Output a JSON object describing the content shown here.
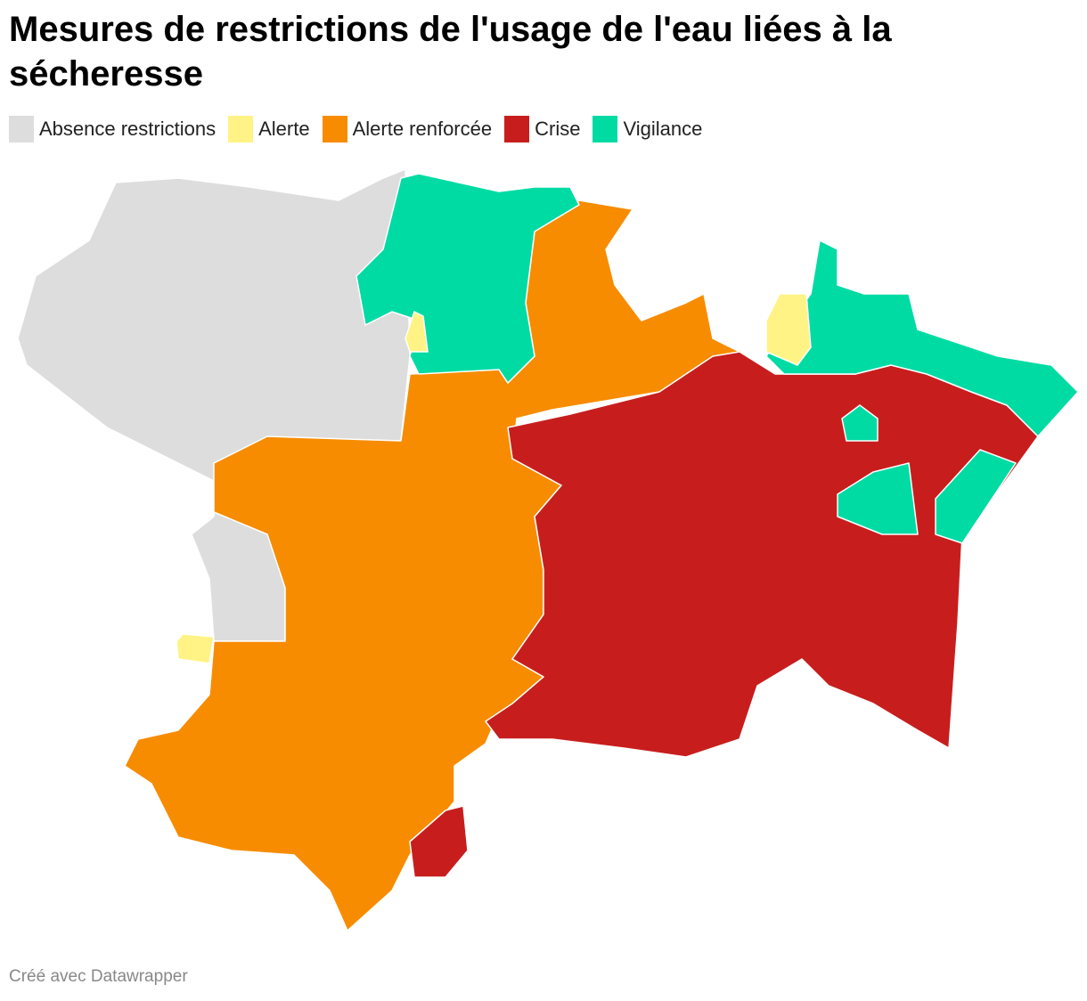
{
  "title": "Mesures de restrictions de l'usage de l'eau liées à la sécheresse",
  "legend": [
    {
      "name": "Absence restrictions",
      "color": "#dddddd"
    },
    {
      "name": "Alerte",
      "color": "#fff385"
    },
    {
      "name": "Alerte renforcée",
      "color": "#f78c00"
    },
    {
      "name": "Crise",
      "color": "#c71e1d"
    },
    {
      "name": "Vigilance",
      "color": "#00dba4"
    }
  ],
  "footer": "Créé avec Datawrapper"
}
